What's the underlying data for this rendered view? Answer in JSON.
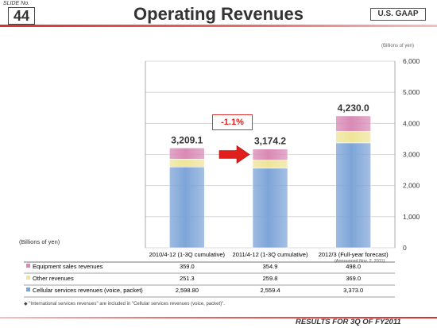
{
  "header": {
    "slide_label": "SLIDE No.",
    "slide_number": "44",
    "title": "Operating Revenues",
    "badge": "U.S. GAAP"
  },
  "footer": {
    "text": "RESULTS FOR 3Q OF FY2011"
  },
  "units_top": "(Billions of yen)",
  "units_left": "(Billions of yen)",
  "change_label": "-1.1%",
  "legend_note": "◆ \"International services revenues\" are included in \"Cellular services revenues (voice, packet)\".",
  "colors": {
    "cellular": "#7ea5d8",
    "other": "#efe49a",
    "equipment": "#d98ab5",
    "accent": "#e0201c"
  },
  "chart_data": {
    "type": "bar",
    "stacked": true,
    "categories": [
      "2010/4-12 (1-3Q cumulative)",
      "2011/4-12 (1-3Q cumulative)",
      "2012/3 (Full-year forecast)"
    ],
    "category_notes": [
      "",
      "",
      "(Announced Nov. 2, 2011)"
    ],
    "series": [
      {
        "name": "Cellular services revenues (voice, packet)",
        "values": [
          2598.8,
          2559.4,
          3373.0
        ],
        "labels": [
          "2,598.80",
          "2,559.4",
          "3,373.0"
        ]
      },
      {
        "name": "Other revenues",
        "values": [
          251.3,
          259.8,
          369.0
        ],
        "labels": [
          "251.3",
          "259.8",
          "369.0"
        ]
      },
      {
        "name": "Equipment sales revenues",
        "values": [
          359.0,
          354.9,
          498.0
        ],
        "labels": [
          "359.0",
          "354.9",
          "498.0"
        ]
      }
    ],
    "totals": [
      "3,209.1",
      "3,174.2",
      "4,230.0"
    ],
    "ylim": [
      0,
      6000
    ],
    "yticks": [
      0,
      1000,
      2000,
      3000,
      4000,
      5000,
      6000
    ],
    "ytick_labels": [
      "0",
      "1,000",
      "2,000",
      "3,000",
      "4,000",
      "5,000",
      "6,000"
    ],
    "ylabel": "(Billions of yen)",
    "grid": true,
    "legend": "table-below"
  }
}
